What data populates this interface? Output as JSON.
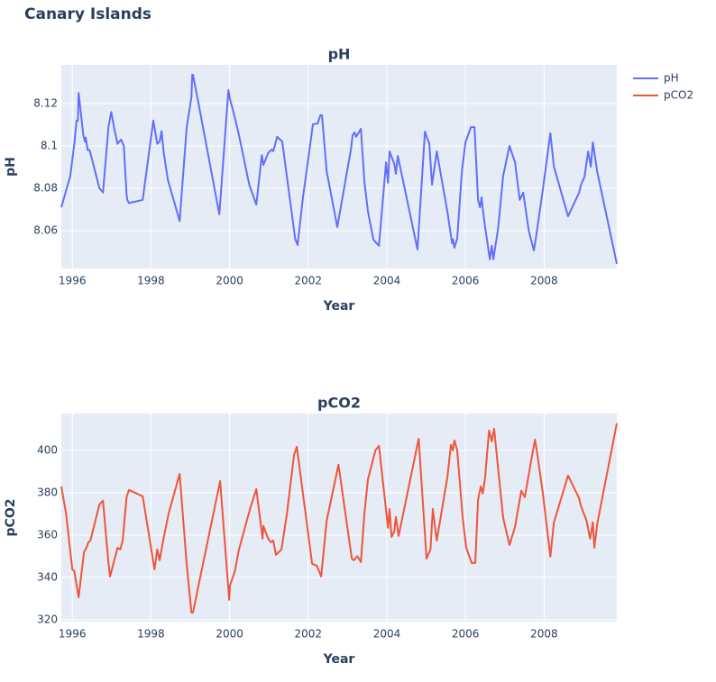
{
  "title": "Canary Islands",
  "chart_data": [
    {
      "type": "line",
      "title": "pH",
      "xlabel": "Year",
      "ylabel": "pH",
      "x": [
        1995.72,
        1995.82,
        1995.95,
        1996.05,
        1996.11,
        1996.14,
        1996.16,
        1996.28,
        1996.32,
        1996.34,
        1996.39,
        1996.44,
        1996.69,
        1996.78,
        1996.92,
        1996.99,
        1997.08,
        1997.15,
        1997.24,
        1997.31,
        1997.38,
        1997.4,
        1997.44,
        1997.79,
        1998.06,
        1998.16,
        1998.22,
        1998.27,
        1998.32,
        1998.43,
        1998.73,
        1998.91,
        1999.03,
        1999.05,
        1999.07,
        1999.19,
        1999.74,
        1999.97,
        2000.01,
        2000.06,
        2000.13,
        2000.24,
        2000.5,
        2000.68,
        2000.82,
        2000.86,
        2000.98,
        2001.07,
        2001.11,
        2001.16,
        2001.21,
        2001.34,
        2001.5,
        2001.67,
        2001.73,
        2001.87,
        2001.99,
        2002.12,
        2002.24,
        2002.31,
        2002.35,
        2002.47,
        2002.74,
        2003.09,
        2003.13,
        2003.18,
        2003.22,
        2003.34,
        2003.43,
        2003.52,
        2003.66,
        2003.8,
        2003.98,
        2004.03,
        2004.07,
        2004.19,
        2004.23,
        2004.28,
        2004.78,
        2004.97,
        2005.04,
        2005.08,
        2005.15,
        2005.27,
        2005.54,
        2005.66,
        2005.68,
        2005.72,
        2005.79,
        2005.91,
        2006.0,
        2006.14,
        2006.23,
        2006.32,
        2006.37,
        2006.41,
        2006.44,
        2006.5,
        2006.62,
        2006.67,
        2006.71,
        2006.83,
        2006.96,
        2007.12,
        2007.26,
        2007.38,
        2007.47,
        2007.61,
        2007.74,
        2007.79,
        2007.97,
        2008.16,
        2008.25,
        2008.61,
        2008.89,
        2008.94,
        2009.03,
        2009.12,
        2009.19,
        2009.24,
        2009.35,
        2009.85
      ],
      "series": [
        {
          "name": "pH",
          "color": "#636efa",
          "values": [
            8.071,
            8.0775,
            8.086,
            8.101,
            8.112,
            8.112,
            8.125,
            8.105,
            8.102,
            8.104,
            8.098,
            8.098,
            8.08,
            8.078,
            8.109,
            8.116,
            8.107,
            8.101,
            8.103,
            8.1,
            8.077,
            8.0745,
            8.073,
            8.0745,
            8.112,
            8.101,
            8.102,
            8.107,
            8.0975,
            8.084,
            8.0645,
            8.109,
            8.123,
            8.1336,
            8.1336,
            8.122,
            8.0677,
            8.1264,
            8.122,
            8.1187,
            8.1136,
            8.105,
            8.0817,
            8.0723,
            8.0957,
            8.091,
            8.0966,
            8.0983,
            8.0975,
            8.1008,
            8.1043,
            8.102,
            8.0796,
            8.056,
            8.0532,
            8.0762,
            8.0923,
            8.1102,
            8.1106,
            8.1145,
            8.1145,
            8.088,
            8.0617,
            8.0987,
            8.1051,
            8.1064,
            8.1043,
            8.1081,
            8.083,
            8.069,
            8.0557,
            8.0528,
            8.0923,
            8.0826,
            8.0974,
            8.0915,
            8.0868,
            8.0953,
            8.0511,
            8.1068,
            8.103,
            8.1013,
            8.0817,
            8.0974,
            8.069,
            8.054,
            8.056,
            8.0519,
            8.0562,
            8.088,
            8.1017,
            8.1089,
            8.1089,
            8.0745,
            8.071,
            8.0757,
            8.0702,
            8.0617,
            8.0464,
            8.0528,
            8.0464,
            8.0609,
            8.086,
            8.1,
            8.0923,
            8.0745,
            8.0779,
            8.06,
            8.0506,
            8.0562,
            8.0796,
            8.106,
            8.0902,
            8.0668,
            8.0779,
            8.0817,
            8.0855,
            8.0974,
            8.0902,
            8.1017,
            8.088,
            8.0443
          ]
        }
      ],
      "xlim": [
        1995.72,
        2009.85
      ],
      "xticks": [
        1996,
        1998,
        2000,
        2002,
        2004,
        2006,
        2008
      ],
      "ylim": [
        8.0421,
        8.1383
      ],
      "yticks": [
        8.06,
        8.08,
        8.1,
        8.12
      ],
      "grid": true
    },
    {
      "type": "line",
      "title": "pCO2",
      "xlabel": "Year",
      "ylabel": "pCO2",
      "x": [
        1995.72,
        1995.84,
        1996.0,
        1996.05,
        1996.16,
        1996.3,
        1996.34,
        1996.41,
        1996.46,
        1996.69,
        1996.78,
        1996.92,
        1996.96,
        1997.15,
        1997.22,
        1997.28,
        1997.38,
        1997.44,
        1997.79,
        1998.09,
        1998.16,
        1998.22,
        1998.32,
        1998.45,
        1998.73,
        1998.91,
        1999.03,
        1999.07,
        1999.21,
        1999.76,
        1999.99,
        2000.01,
        2000.13,
        2000.24,
        2000.52,
        2000.68,
        2000.84,
        2000.86,
        2000.98,
        2001.05,
        2001.11,
        2001.18,
        2001.32,
        2001.46,
        2001.64,
        2001.71,
        2002.1,
        2002.22,
        2002.33,
        2002.47,
        2002.77,
        2003.06,
        2003.11,
        2003.16,
        2003.25,
        2003.34,
        2003.43,
        2003.52,
        2003.71,
        2003.8,
        2004.03,
        2004.07,
        2004.12,
        2004.19,
        2004.23,
        2004.3,
        2004.81,
        2005.01,
        2005.11,
        2005.17,
        2005.27,
        2005.54,
        2005.63,
        2005.68,
        2005.72,
        2005.79,
        2005.93,
        2006.02,
        2006.16,
        2006.25,
        2006.32,
        2006.39,
        2006.44,
        2006.5,
        2006.6,
        2006.67,
        2006.73,
        2006.83,
        2006.96,
        2007.12,
        2007.26,
        2007.42,
        2007.51,
        2007.67,
        2007.77,
        2007.83,
        2007.97,
        2008.16,
        2008.25,
        2008.61,
        2008.89,
        2008.94,
        2009.08,
        2009.17,
        2009.24,
        2009.28,
        2009.35,
        2009.85
      ],
      "series": [
        {
          "name": "pCO2",
          "color": "#EF553B",
          "values": [
            383,
            370.2,
            343.8,
            343,
            330.6,
            352.3,
            353.2,
            356.6,
            357.4,
            374.5,
            376.2,
            346.8,
            340.4,
            354,
            353.2,
            357.4,
            377.9,
            381.3,
            378.3,
            343.8,
            353.2,
            348.1,
            358.3,
            370.2,
            388.9,
            346,
            323.4,
            323.4,
            336.2,
            385.5,
            329.4,
            336.2,
            342.6,
            353.2,
            372.3,
            381.7,
            358.3,
            364.3,
            358.3,
            356.6,
            357.4,
            350.6,
            353.2,
            370.2,
            397.9,
            401.7,
            346.4,
            345.5,
            340.4,
            366.8,
            393.2,
            355.3,
            348.9,
            348.1,
            350,
            347.2,
            370.2,
            386.4,
            400,
            402.1,
            363.4,
            372.3,
            359.1,
            361.7,
            368.5,
            359.6,
            405.5,
            348.9,
            353.2,
            372.3,
            357.4,
            387.2,
            402.6,
            400,
            404.7,
            400,
            368.1,
            354,
            346.8,
            346.8,
            376.6,
            383,
            379.6,
            387.2,
            409.4,
            404.3,
            410.2,
            391.5,
            368.1,
            355.3,
            363.8,
            380.9,
            377.9,
            394.9,
            405.1,
            397.9,
            379.6,
            349.8,
            366,
            388.1,
            377.4,
            373.6,
            366.8,
            358.3,
            366,
            354,
            365.1,
            412.8
          ]
        }
      ],
      "xlim": [
        1995.72,
        2009.85
      ],
      "xticks": [
        1996,
        1998,
        2000,
        2002,
        2004,
        2006,
        2008
      ],
      "ylim": [
        319.1,
        417.4
      ],
      "yticks": [
        320,
        340,
        360,
        380,
        400
      ],
      "grid": true
    }
  ]
}
